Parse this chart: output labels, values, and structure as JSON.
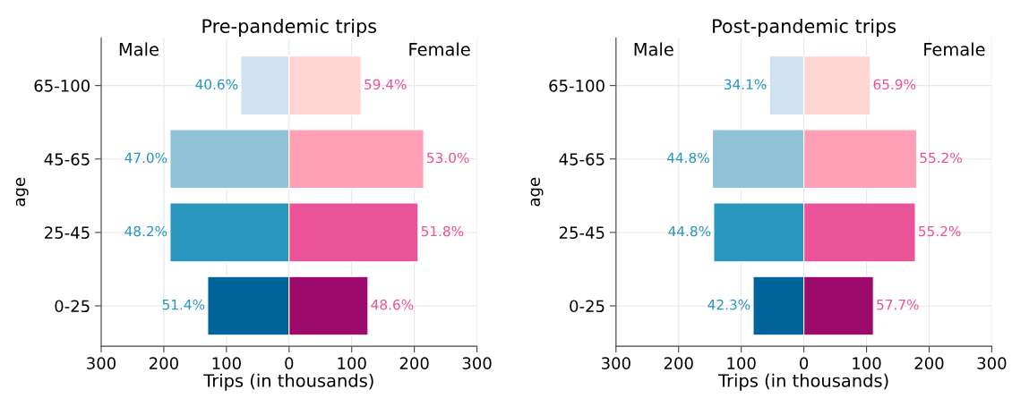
{
  "chart_data": [
    {
      "type": "bar",
      "orientation": "horizontal",
      "stacked": true,
      "title": "Pre-pandemic trips",
      "xlabel": "Trips (in thousands)",
      "ylabel": "age",
      "categories": [
        "65-100",
        "45-65",
        "25-45",
        "0-25"
      ],
      "series": [
        {
          "colors": [
            "#d0e1f0",
            "#8fc2d8",
            "#2896bd",
            "#00649b"
          ],
          "values": [
            -77,
            -190,
            -190,
            -130
          ]
        },
        {
          "colors": [
            "#fed5d3",
            "#ffa0b6",
            "#ea5397",
            "#9c0a6c"
          ],
          "values": [
            115,
            215,
            206,
            126
          ]
        }
      ],
      "annotations": [
        "Male",
        "Female",
        {
          "text": "40.6%",
          "x": -77,
          "y": "65-100"
        },
        {
          "text": "47.0%",
          "x": -190,
          "y": "45-65"
        },
        {
          "text": "48.2%",
          "x": -190,
          "y": "25-45"
        },
        {
          "text": "51.4%",
          "x": -130,
          "y": "0-25"
        },
        {
          "text": "59.4%",
          "x": 115,
          "y": "65-100"
        },
        {
          "text": "53.0%",
          "x": 215,
          "y": "45-65"
        },
        {
          "text": "51.8%",
          "x": 206,
          "y": "25-45"
        },
        {
          "text": "48.6%",
          "x": 126,
          "y": "0-25"
        }
      ],
      "xlim": [
        -300,
        300
      ],
      "xticks": [
        {
          "value": -300,
          "label": "300"
        },
        {
          "value": -200,
          "label": "200"
        },
        {
          "value": -100,
          "label": "100"
        },
        0,
        100,
        200,
        300
      ],
      "grid": true
    },
    {
      "type": "bar",
      "orientation": "horizontal",
      "stacked": true,
      "title": "Post-pandemic trips",
      "xlabel": "Trips (in thousands)",
      "ylabel": "age",
      "categories": [
        "65-100",
        "45-65",
        "25-45",
        "0-25"
      ],
      "series": [
        {
          "colors": [
            "#d0e1f0",
            "#8fc2d8",
            "#2896bd",
            "#00649b"
          ],
          "values": [
            -55,
            -146,
            -144,
            -81
          ]
        },
        {
          "colors": [
            "#fed5d3",
            "#ffa0b6",
            "#ea5397",
            "#9c0a6c"
          ],
          "values": [
            106,
            180,
            178,
            111
          ]
        }
      ],
      "annotations": [
        "Male",
        "Female",
        {
          "text": "34.1%",
          "x": -55,
          "y": "65-100"
        },
        {
          "text": "44.8%",
          "x": -146,
          "y": "45-65"
        },
        {
          "text": "44.8%",
          "x": -144,
          "y": "25-45"
        },
        {
          "text": "42.3%",
          "x": -81,
          "y": "0-25"
        },
        {
          "text": "65.9%",
          "x": 106,
          "y": "65-100"
        },
        {
          "text": "55.2%",
          "x": 180,
          "y": "45-65"
        },
        {
          "text": "55.2%",
          "x": 178,
          "y": "25-45"
        },
        {
          "text": "57.7%",
          "x": 111,
          "y": "0-25"
        }
      ],
      "xlim": [
        -300,
        300
      ],
      "xticks": [
        {
          "value": -300,
          "label": "300"
        },
        {
          "value": -200,
          "label": "200"
        },
        {
          "value": -100,
          "label": "100"
        },
        0,
        100,
        200,
        300
      ],
      "grid": true
    }
  ]
}
